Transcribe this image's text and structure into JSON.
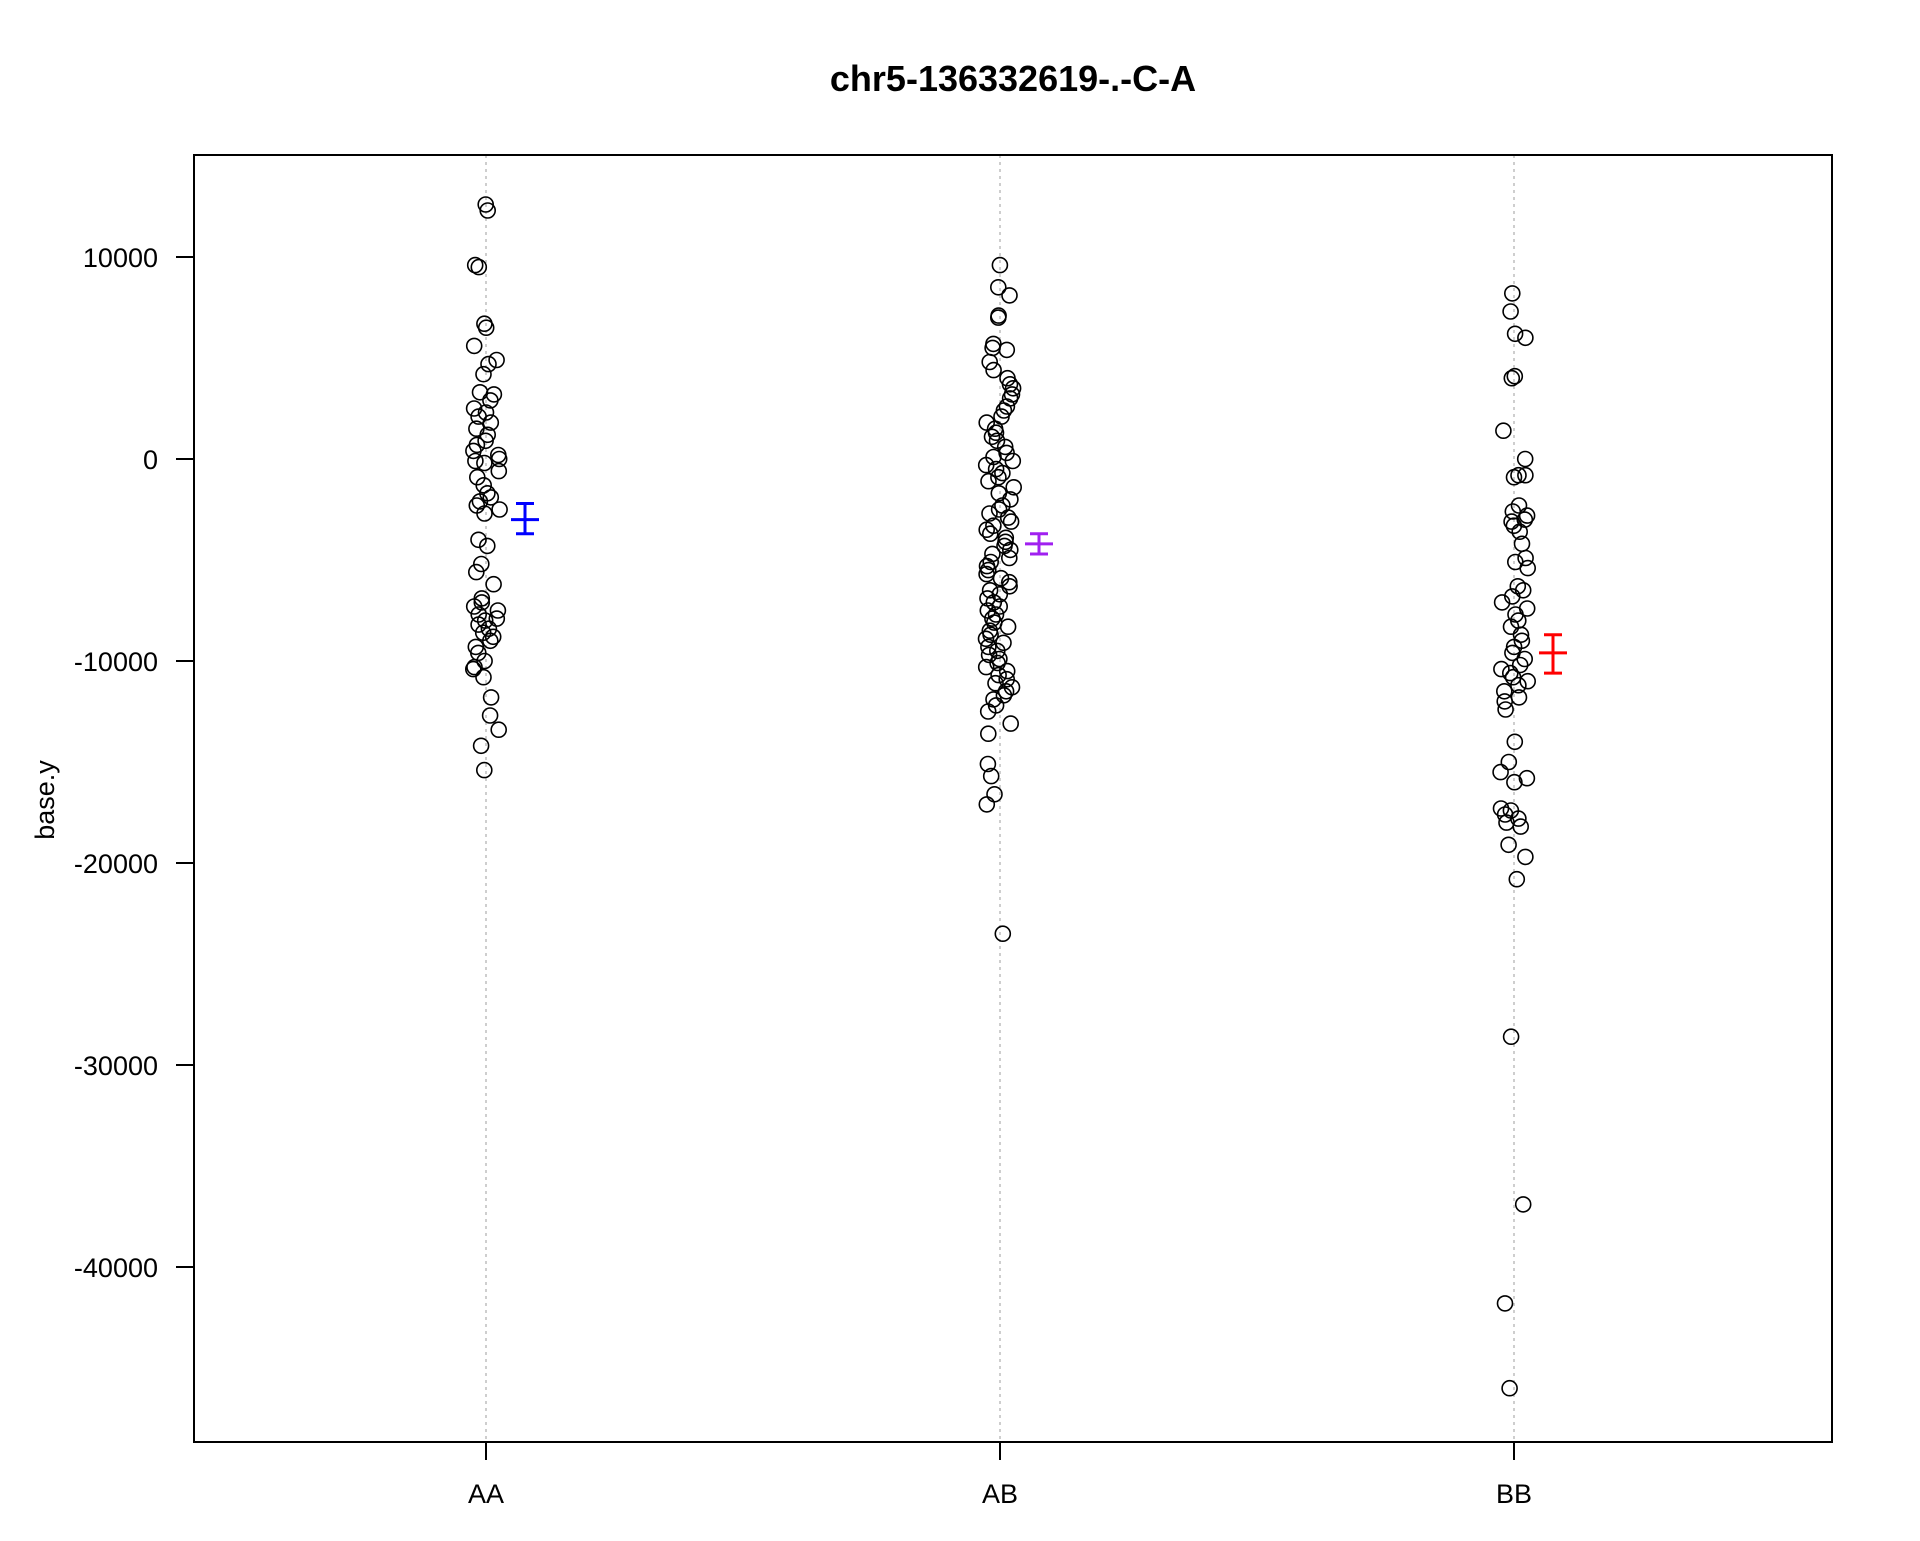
{
  "chart_data": {
    "type": "scatter",
    "title": "chr5-136332619-.-C-A",
    "xlabel": "",
    "ylabel": "base.y",
    "categories": [
      "AA",
      "AB",
      "BB"
    ],
    "ylim": [
      -48000,
      15000
    ],
    "yticks": [
      10000,
      0,
      -10000,
      -20000,
      -30000,
      -40000
    ],
    "ytick_labels": [
      "10000",
      "0",
      "-10000",
      "-20000",
      "-30000",
      "-40000"
    ],
    "grid": "vertical dotted lines at categories",
    "colors": {
      "points": "#000000",
      "AA_errorbar": "#0000ff",
      "AB_errorbar": "#a020f0",
      "BB_errorbar": "#ff0000",
      "gridline": "#bebebe"
    },
    "series": [
      {
        "category": "AA",
        "error_bar": {
          "mean": -3000,
          "lower": -3700,
          "upper": -2200,
          "color": "#0000ff"
        },
        "points": [
          12600,
          12300,
          9600,
          9500,
          6700,
          6500,
          5600,
          4900,
          4700,
          4200,
          3300,
          3200,
          2900,
          2500,
          2300,
          2100,
          1800,
          1500,
          1200,
          900,
          700,
          400,
          200,
          0,
          -100,
          -200,
          -600,
          -900,
          -1300,
          -1700,
          -1900,
          -2100,
          -2300,
          -2500,
          -2700,
          -4000,
          -4300,
          -5200,
          -5600,
          -6200,
          -6900,
          -7100,
          -7300,
          -7500,
          -7700,
          -7900,
          -8000,
          -8200,
          -8400,
          -8600,
          -8800,
          -9000,
          -9300,
          -9600,
          -10000,
          -10300,
          -10400,
          -10800,
          -11800,
          -12700,
          -13400,
          -14200,
          -15400
        ]
      },
      {
        "category": "AB",
        "error_bar": {
          "mean": -4200,
          "lower": -4700,
          "upper": -3700,
          "color": "#a020f0"
        },
        "points": [
          9600,
          8500,
          8100,
          7100,
          7000,
          5700,
          5500,
          5400,
          4800,
          4400,
          4000,
          3700,
          3500,
          3200,
          3000,
          2600,
          2400,
          2100,
          1800,
          1500,
          1300,
          1100,
          900,
          600,
          300,
          100,
          -100,
          -300,
          -500,
          -700,
          -900,
          -1100,
          -1400,
          -1700,
          -2000,
          -2300,
          -2500,
          -2700,
          -2900,
          -3100,
          -3300,
          -3500,
          -3700,
          -3900,
          -4100,
          -4300,
          -4500,
          -4700,
          -4900,
          -5100,
          -5300,
          -5500,
          -5700,
          -5900,
          -6100,
          -6300,
          -6500,
          -6700,
          -6900,
          -7100,
          -7300,
          -7500,
          -7700,
          -7900,
          -8100,
          -8300,
          -8500,
          -8700,
          -8900,
          -9100,
          -9300,
          -9500,
          -9700,
          -9900,
          -10100,
          -10300,
          -10500,
          -10700,
          -10900,
          -11100,
          -11300,
          -11500,
          -11700,
          -11900,
          -12200,
          -12500,
          -13100,
          -13600,
          -15100,
          -15700,
          -16600,
          -17100,
          -23500
        ]
      },
      {
        "category": "BB",
        "error_bar": {
          "mean": -9600,
          "lower": -10600,
          "upper": -8700,
          "color": "#ff0000"
        },
        "points": [
          8200,
          7300,
          6200,
          6000,
          4100,
          4000,
          1400,
          0,
          -800,
          -900,
          -800,
          -2300,
          -2600,
          -2800,
          -3000,
          -3100,
          -3300,
          -3600,
          -4200,
          -4900,
          -5100,
          -5400,
          -6300,
          -6500,
          -6800,
          -7100,
          -7400,
          -7700,
          -8000,
          -8300,
          -8700,
          -9000,
          -9300,
          -9600,
          -9900,
          -10200,
          -10400,
          -10600,
          -10800,
          -11000,
          -11200,
          -11500,
          -11800,
          -12000,
          -12400,
          -14000,
          -15000,
          -15500,
          -15800,
          -16000,
          -17300,
          -17400,
          -17600,
          -17800,
          -18000,
          -18200,
          -19100,
          -19700,
          -20800,
          -28600,
          -36900,
          -41800,
          -46000
        ]
      }
    ]
  }
}
